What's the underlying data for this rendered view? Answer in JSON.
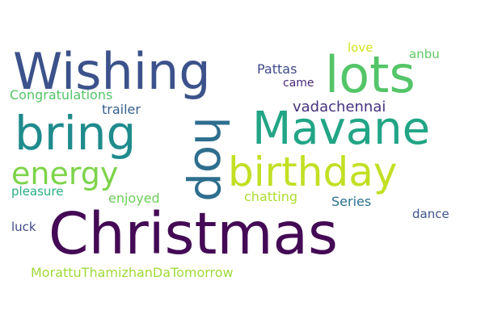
{
  "word_cloud": {
    "colormap": "viridis",
    "background": "#ffffff",
    "words": [
      {
        "id": "christmas",
        "text": "Christmas",
        "color": "#440a55"
      },
      {
        "id": "wishing",
        "text": "Wishing",
        "color": "#3b528b"
      },
      {
        "id": "lots",
        "text": "lots",
        "color": "#54c568"
      },
      {
        "id": "mavane",
        "text": "Mavane",
        "color": "#21a585"
      },
      {
        "id": "bring",
        "text": "bring",
        "color": "#1f8b8c"
      },
      {
        "id": "birthday",
        "text": "birthday",
        "color": "#c3df24"
      },
      {
        "id": "energy",
        "text": "energy",
        "color": "#7dd34a"
      },
      {
        "id": "hop",
        "text": "hop",
        "color": "#2e6e8e",
        "rotated": true
      },
      {
        "id": "love",
        "text": "love",
        "color": "#d2e21b"
      },
      {
        "id": "anbu",
        "text": "anbu",
        "color": "#5dc963"
      },
      {
        "id": "pattas",
        "text": "Pattas",
        "color": "#3e4a89"
      },
      {
        "id": "came",
        "text": "came",
        "color": "#482878"
      },
      {
        "id": "congratulations",
        "text": "Congratulations",
        "color": "#54c568"
      },
      {
        "id": "trailer",
        "text": "trailer",
        "color": "#355f8d"
      },
      {
        "id": "vadachennai",
        "text": "vadachennai",
        "color": "#46327e"
      },
      {
        "id": "pleasure",
        "text": "pleasure",
        "color": "#26ad81"
      },
      {
        "id": "enjoyed",
        "text": "enjoyed",
        "color": "#6cce59"
      },
      {
        "id": "chatting",
        "text": "chatting",
        "color": "#addc30"
      },
      {
        "id": "series",
        "text": "Series",
        "color": "#2d708e"
      },
      {
        "id": "dance",
        "text": "dance",
        "color": "#3b528b"
      },
      {
        "id": "luck",
        "text": "luck",
        "color": "#3e4a89"
      },
      {
        "id": "morattuthamizhandatomorrow",
        "text": "MorattuThamizhanDaTomorrow",
        "color": "#a0da39"
      }
    ]
  }
}
